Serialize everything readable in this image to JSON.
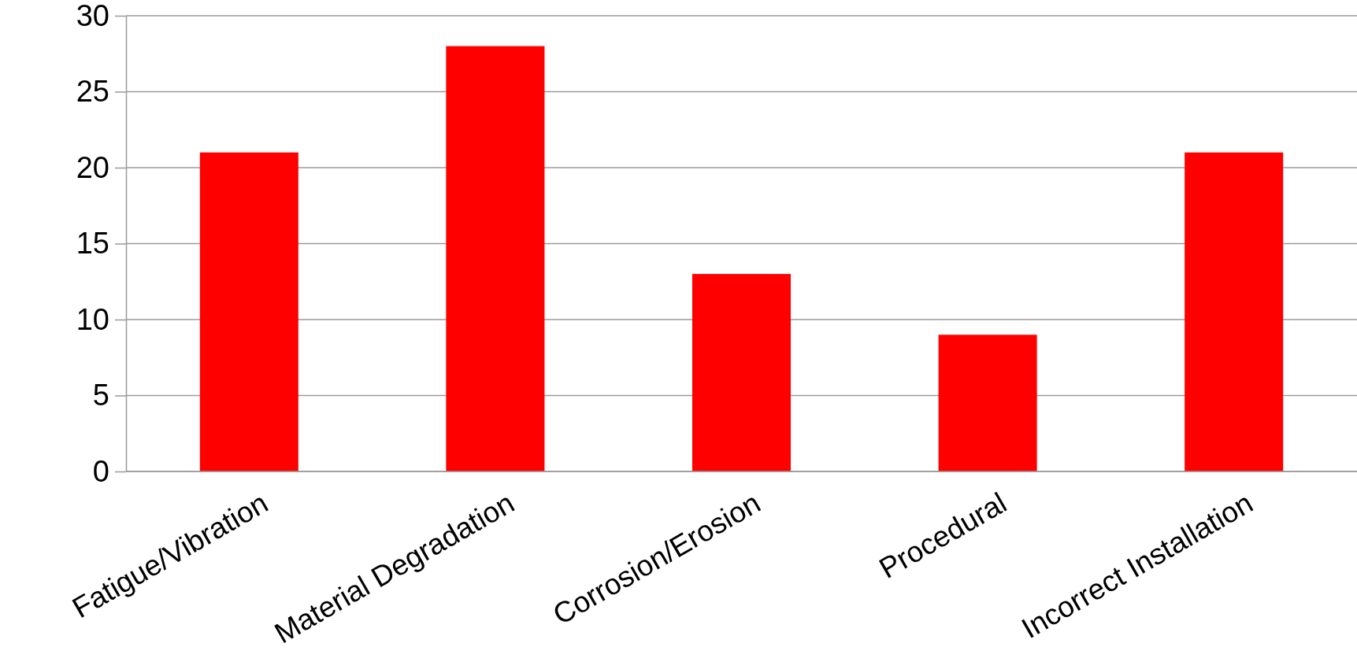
{
  "chart_data": {
    "type": "bar",
    "categories": [
      "Fatigue/Vibration",
      "Material Degradation",
      "Corrosion/Erosion",
      "Procedural",
      "Incorrect Installation"
    ],
    "values": [
      21,
      28,
      13,
      9,
      21
    ],
    "color": "#ff0000",
    "ylim": [
      0,
      30
    ],
    "yticks": [
      0,
      5,
      10,
      15,
      20,
      25,
      30
    ],
    "grid": "y"
  }
}
